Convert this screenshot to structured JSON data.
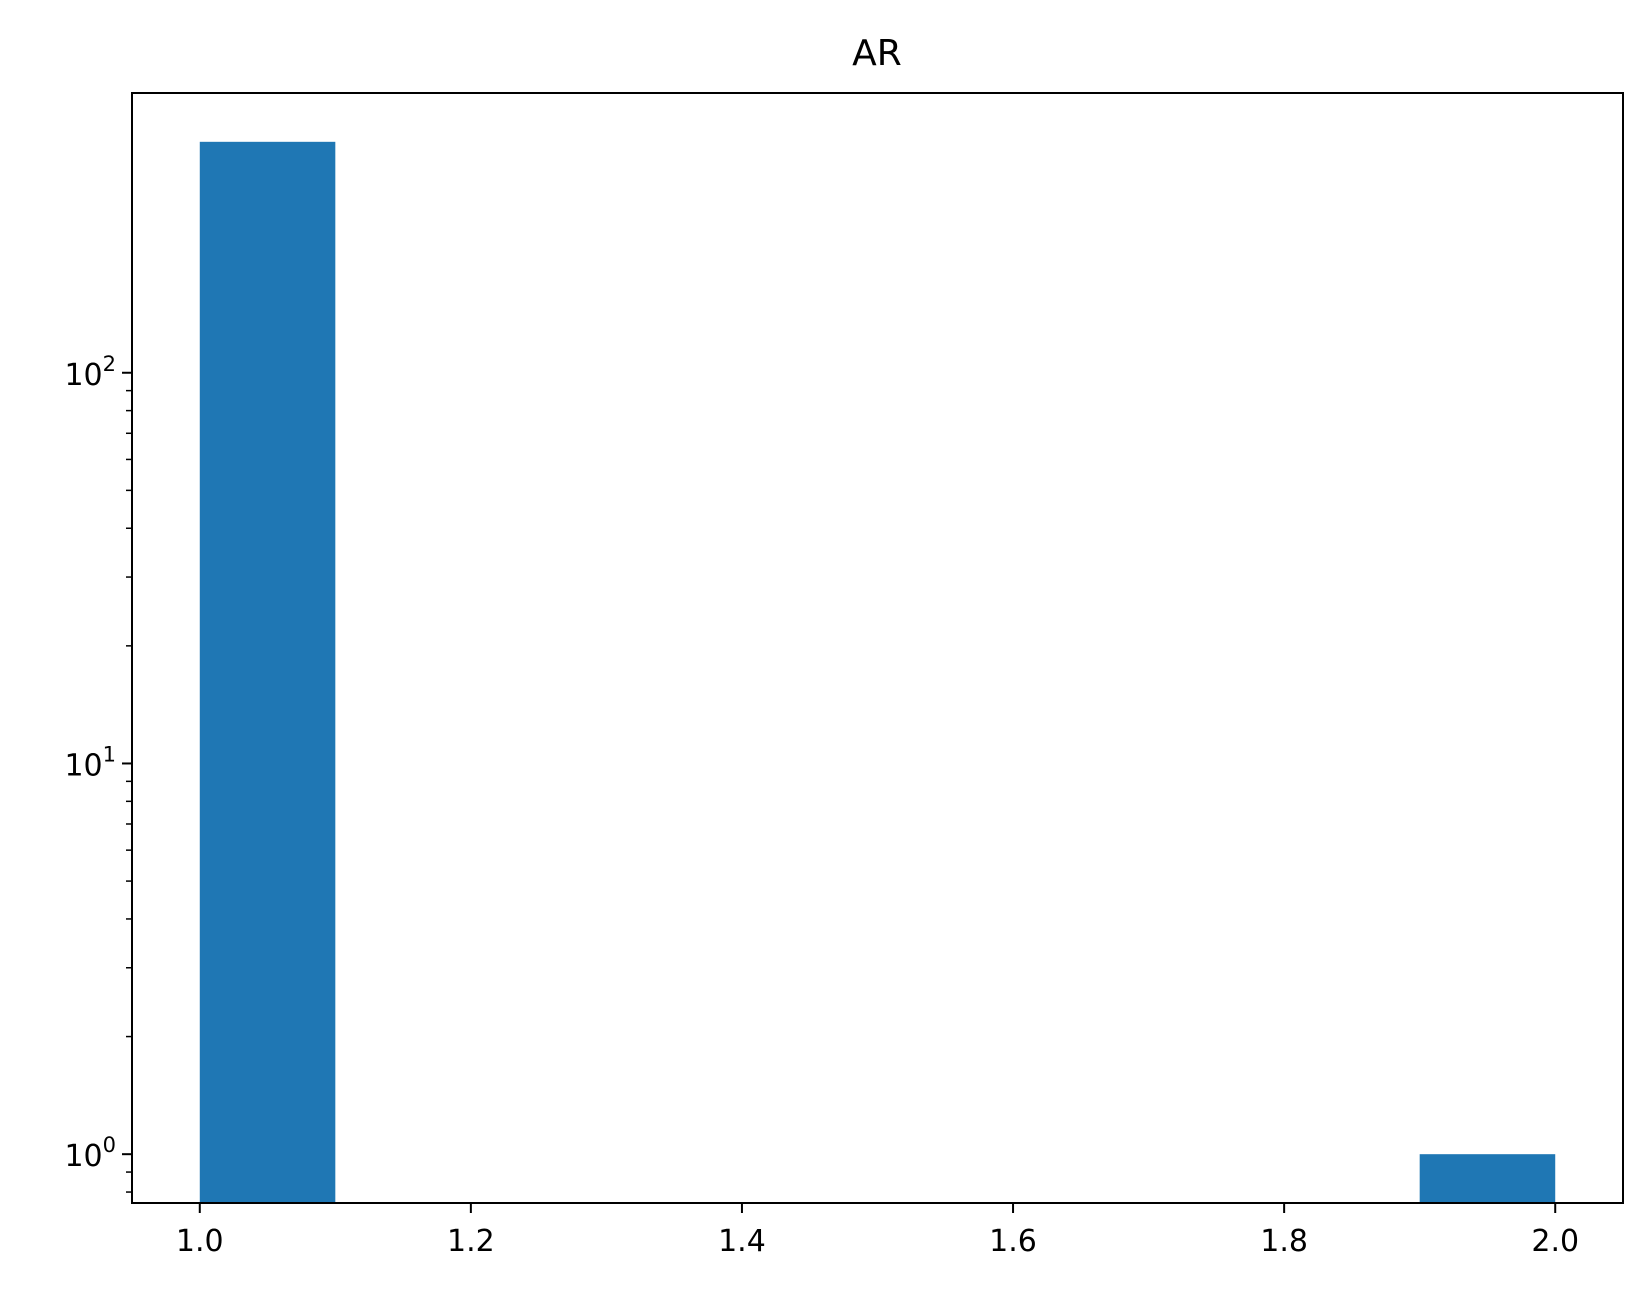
{
  "chart_data": {
    "type": "bar",
    "title": "AR",
    "xlabel": "",
    "ylabel": "",
    "yscale": "log",
    "xlim": [
      0.95,
      2.05
    ],
    "ylim": [
      0.75,
      520
    ],
    "bins": [
      {
        "x0": 1.0,
        "x1": 1.1,
        "value": 390
      },
      {
        "x0": 1.9,
        "x1": 2.0,
        "value": 1
      }
    ],
    "x_ticks": [
      {
        "value": 1.0,
        "label": "1.0"
      },
      {
        "value": 1.2,
        "label": "1.2"
      },
      {
        "value": 1.4,
        "label": "1.4"
      },
      {
        "value": 1.6,
        "label": "1.6"
      },
      {
        "value": 1.8,
        "label": "1.8"
      },
      {
        "value": 2.0,
        "label": "2.0"
      }
    ],
    "y_ticks": [
      {
        "value": 1,
        "base": "10",
        "exp": "0"
      },
      {
        "value": 10,
        "base": "10",
        "exp": "1"
      },
      {
        "value": 100,
        "base": "10",
        "exp": "2"
      }
    ],
    "grid": false,
    "bar_color": "#1f77b4"
  }
}
